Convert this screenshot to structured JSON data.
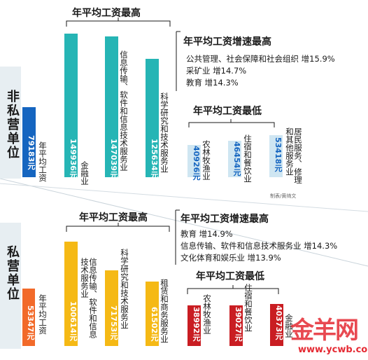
{
  "sections": [
    {
      "id": "nonprivate",
      "label": "非私营单位",
      "highest_title": "年平均工资最高",
      "growth_title": "年平均工资增速最高",
      "growth_items": [
        "公共管理、社会保障和社会组织  增15.9%",
        "采矿业  增14.7%",
        "教育  增14.3%"
      ],
      "lowest_title": "年平均工资最低",
      "colors": {
        "average": "#1565c0",
        "highest": "#26b5b5",
        "lowest": "#cfe6f2",
        "lowest_text": "#1565c0"
      }
    },
    {
      "id": "private",
      "label": "私营单位",
      "highest_title": "年平均工资最高",
      "growth_title": "年平均工资增速最高",
      "growth_items": [
        "教育  增14.9%",
        "信息传输、软件和信息技术服务业  增14.3%",
        "文化体育和娱乐业  增13.9%"
      ],
      "lowest_title": "年平均工资最低",
      "colors": {
        "average": "#f26a2a",
        "highest": "#f5b915",
        "lowest": "#c91d22",
        "lowest_text": "#ffffff"
      }
    }
  ],
  "credit": "制表/黄绮文",
  "watermark": {
    "brand": "金羊网",
    "url": "www.ycwb.com"
  },
  "chart_data": [
    {
      "type": "bar",
      "title": "非私营单位",
      "unit": "元",
      "bars": [
        {
          "group": "average",
          "category": "年平均工资",
          "value_label": "79183元",
          "value": 79183
        },
        {
          "group": "highest",
          "category": "金融业",
          "value_label": "149936元",
          "value": 149936
        },
        {
          "group": "highest",
          "category": "信息传输、软件和信息技术服务业",
          "value_label": "147039元",
          "value": 147039
        },
        {
          "group": "highest",
          "category": "科学研究和技术服务业",
          "value_label": "125634元",
          "value": 125634
        },
        {
          "group": "lowest",
          "category": "农林牧渔业",
          "value_label": "40926元",
          "value": 40926
        },
        {
          "group": "lowest",
          "category": "住宿和餐饮业",
          "value_label": "46454元",
          "value": 46454
        },
        {
          "group": "lowest",
          "category": "居民服务、修理和其他服务业",
          "value_label": "53418元",
          "value": 53418
        }
      ]
    },
    {
      "type": "bar",
      "title": "私营单位",
      "unit": "元",
      "bars": [
        {
          "group": "average",
          "category": "年平均工资",
          "value_label": "53347元",
          "value": 53347
        },
        {
          "group": "highest",
          "category": "信息传输、软件和信息技术服务业",
          "value_label": "100614元",
          "value": 100614
        },
        {
          "group": "highest",
          "category": "科学研究和技术服务业",
          "value_label": "71753元",
          "value": 71753
        },
        {
          "group": "highest",
          "category": "租赁和商务服务业",
          "value_label": "61502元",
          "value": 61502
        },
        {
          "group": "lowest",
          "category": "农林牧渔业",
          "value_label": "38992元",
          "value": 38992
        },
        {
          "group": "lowest",
          "category": "住宿和餐饮业",
          "value_label": "39027元",
          "value": 39027
        },
        {
          "group": "lowest",
          "category": "金融业",
          "value_label": "40373元",
          "value": 40373
        }
      ]
    }
  ]
}
